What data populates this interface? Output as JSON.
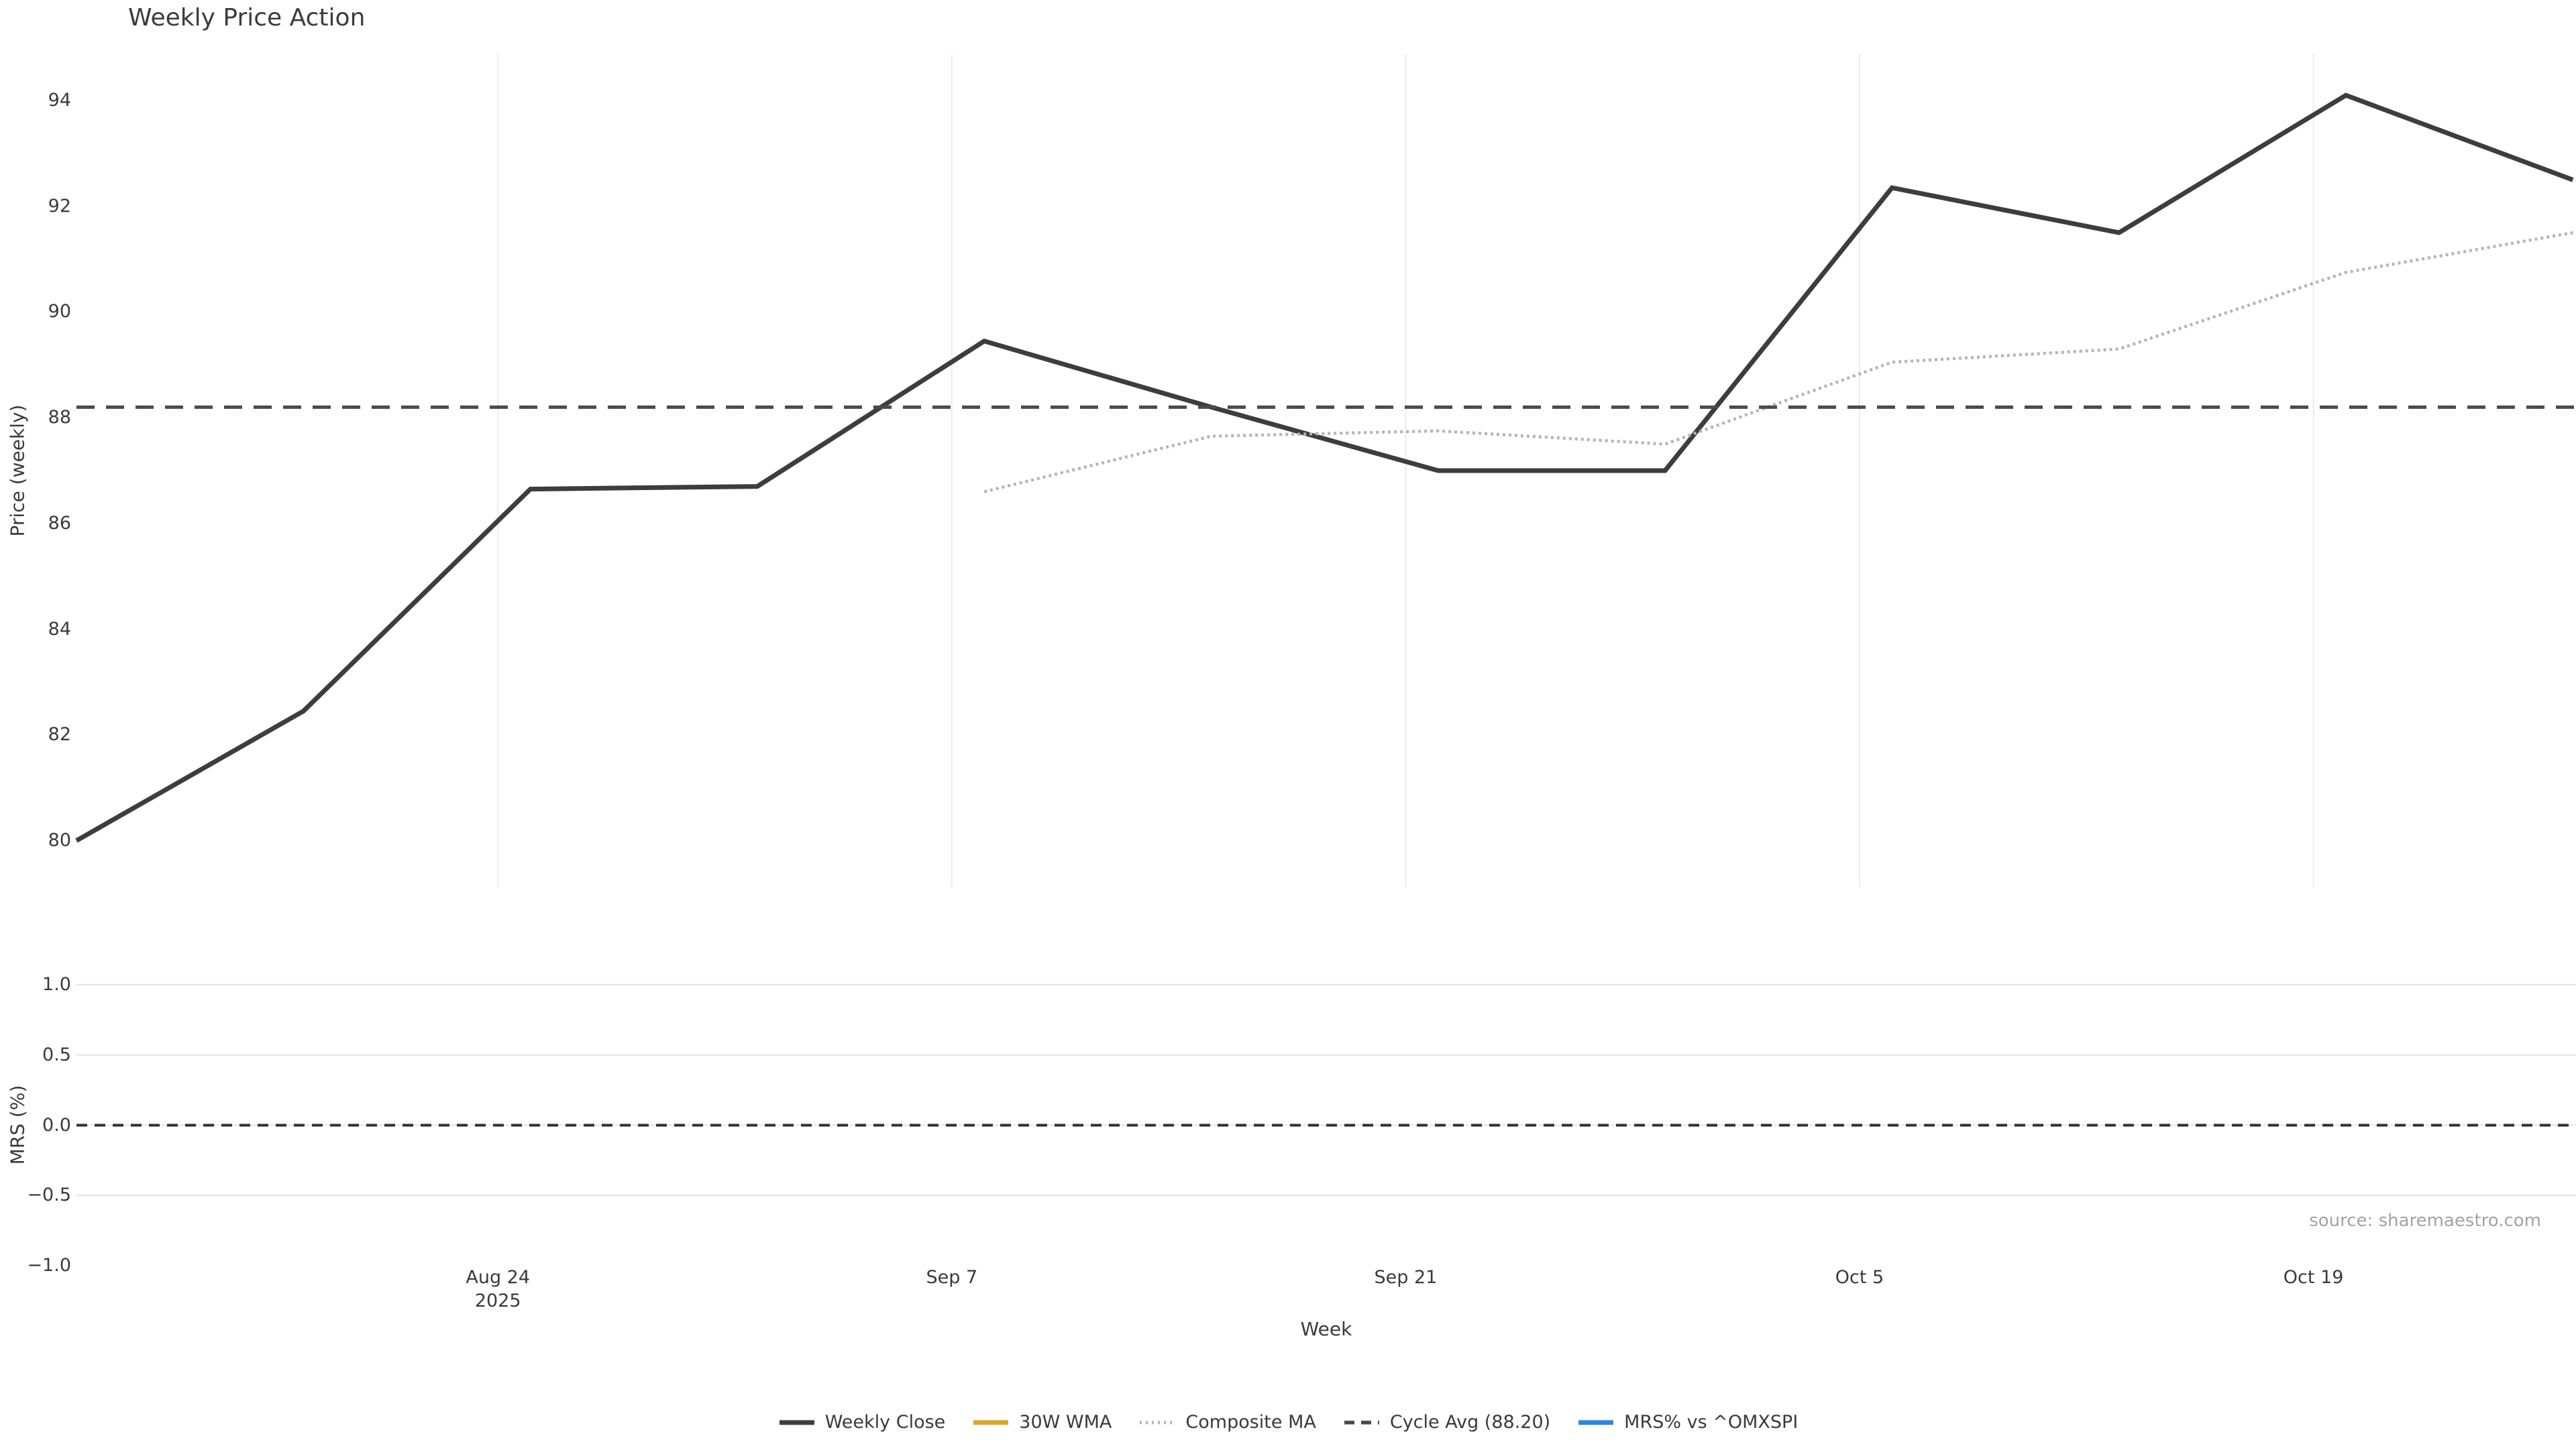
{
  "title": "Weekly Price Action",
  "source_note": "source: sharemaestro.com",
  "colors": {
    "weekly_close": "#3d3d3d",
    "wma_30w": "#d9a62a",
    "composite_ma": "#b5b5b5",
    "cycle_avg": "#4a4a4a",
    "mrs": "#2e86de",
    "grid_vertical": "#ebebeb",
    "grid_horizontal": "#e8e8e8",
    "zero_line": "#303030",
    "tick_text": "#3a3a3a",
    "source_text": "#a3a3a3"
  },
  "legend": [
    {
      "label": "Weekly Close",
      "color": "#3d3d3d",
      "style": "solid"
    },
    {
      "label": "30W WMA",
      "color": "#d9a62a",
      "style": "solid"
    },
    {
      "label": "Composite MA",
      "color": "#b5b5b5",
      "style": "dotted"
    },
    {
      "label": "Cycle Avg (88.20)",
      "color": "#4a4a4a",
      "style": "dashed"
    },
    {
      "label": "MRS% vs ^OMXSPI",
      "color": "#2e86de",
      "style": "solid"
    }
  ],
  "chart_data": [
    {
      "type": "line",
      "panel": "price",
      "title": "Weekly Price Action",
      "xlabel": "Week",
      "ylabel": "Price (weekly)",
      "ylim": [
        79.1,
        94.9
      ],
      "grid": "vertical-only",
      "yticks": [
        94,
        92,
        90,
        88,
        86,
        84,
        82,
        80
      ],
      "x_ticks": [
        {
          "label": "Aug 24",
          "sublabel": "2025",
          "week_pos": 1.857
        },
        {
          "label": "Sep 7",
          "sublabel": "",
          "week_pos": 3.857
        },
        {
          "label": "Sep 21",
          "sublabel": "",
          "week_pos": 5.857
        },
        {
          "label": "Oct 5",
          "sublabel": "",
          "week_pos": 7.857
        },
        {
          "label": "Oct 19",
          "sublabel": "",
          "week_pos": 9.857
        }
      ],
      "series": [
        {
          "name": "Weekly Close",
          "style": "solid",
          "color_key": "weekly_close",
          "x": [
            0,
            1,
            2,
            3,
            4,
            5,
            6,
            7,
            8,
            9,
            10,
            11
          ],
          "values": [
            80.0,
            82.45,
            86.65,
            86.7,
            89.45,
            88.2,
            87.0,
            87.0,
            92.35,
            91.5,
            94.1,
            92.5
          ]
        },
        {
          "name": "30W WMA",
          "style": "solid",
          "color_key": "wma_30w",
          "x": [],
          "values": []
        },
        {
          "name": "Composite MA",
          "style": "dotted",
          "color_key": "composite_ma",
          "x": [
            4,
            5,
            6,
            7,
            8,
            9,
            10,
            11
          ],
          "values": [
            86.6,
            87.65,
            87.75,
            87.5,
            89.05,
            89.3,
            90.75,
            91.5
          ]
        },
        {
          "name": "Cycle Avg (88.20)",
          "style": "dashed",
          "color_key": "cycle_avg",
          "hline": 88.2
        }
      ]
    },
    {
      "type": "line",
      "panel": "mrs",
      "ylabel": "MRS (%)",
      "ylim": [
        -1.05,
        1.05
      ],
      "grid": "horizontal-only",
      "yticks": [
        {
          "label": "1.0",
          "value": 1.0,
          "gridline": true
        },
        {
          "label": "0.5",
          "value": 0.5,
          "gridline": true
        },
        {
          "label": "0.0",
          "value": 0.0,
          "gridline": true
        },
        {
          "label": "−0.5",
          "value": -0.5,
          "gridline": true
        },
        {
          "label": "−1.0",
          "value": -1.0,
          "gridline": false
        }
      ],
      "zero_dashed_line": 0.0,
      "series": [
        {
          "name": "MRS% vs ^OMXSPI",
          "style": "solid",
          "color_key": "mrs",
          "x": [],
          "values": []
        }
      ]
    }
  ]
}
